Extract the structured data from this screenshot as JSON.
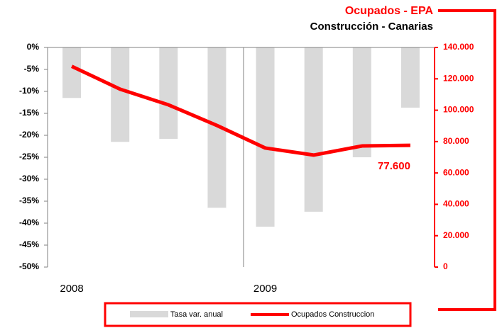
{
  "chart_data": {
    "type": "bar_line",
    "title": "Ocupados - EPA",
    "subtitle": "Construcción - Canarias",
    "categories": [
      "2008",
      null,
      null,
      null,
      "2009",
      null,
      null,
      null
    ],
    "series": [
      {
        "name": "Tasa var. anual",
        "color": "#d9d9d9",
        "type": "bar",
        "values": [
          -11.5,
          -21.5,
          -20.8,
          -36.5,
          -40.8,
          -37.4,
          -25,
          -13.7
        ]
      },
      {
        "name": "Ocupados Construccion",
        "color": "#ff0000",
        "type": "line",
        "axis": "y2",
        "values": [
          128000,
          113400,
          103400,
          90300,
          75900,
          71400,
          77200,
          77600
        ],
        "value_labels": [
          null,
          null,
          null,
          null,
          null,
          null,
          null,
          "77.600"
        ]
      }
    ],
    "ylim": [
      -50,
      0
    ],
    "yticks": [
      {
        "value": 0,
        "label": "0%"
      },
      {
        "value": -5,
        "label": "-5%"
      },
      {
        "value": -10,
        "label": "-10%"
      },
      {
        "value": -15,
        "label": "-15%"
      },
      {
        "value": -20,
        "label": "-20%"
      },
      {
        "value": -25,
        "label": "-25%"
      },
      {
        "value": -30,
        "label": "-30%"
      },
      {
        "value": -35,
        "label": "-35%"
      },
      {
        "value": -40,
        "label": "-40%"
      },
      {
        "value": -45,
        "label": "-45%"
      },
      {
        "value": -50,
        "label": "-50%"
      }
    ],
    "y2lim": [
      0,
      140000
    ],
    "y2ticks": [
      0,
      {
        "value": 20000,
        "label": "20.000"
      },
      {
        "value": 40000,
        "label": "40.000"
      },
      {
        "value": 60000,
        "label": "60.000"
      },
      {
        "value": 80000,
        "label": "80.000"
      },
      {
        "value": 100000,
        "label": "100.000"
      },
      {
        "value": 120000,
        "label": "120.000"
      },
      {
        "value": 140000,
        "label": "140.000"
      }
    ]
  }
}
